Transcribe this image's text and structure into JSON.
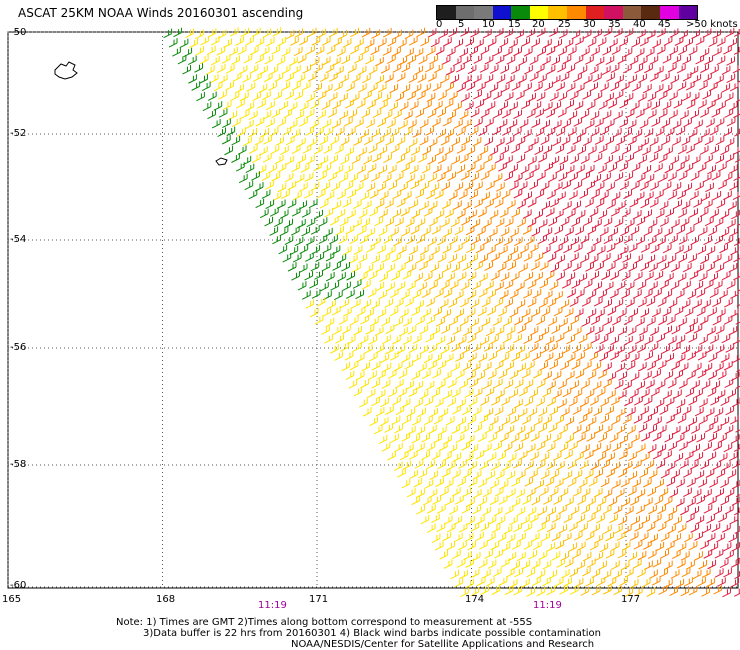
{
  "title": "ASCAT 25KM NOAA Winds 20160301 ascending",
  "legend": {
    "ticks": [
      "0",
      "5",
      "10",
      "15",
      "20",
      "25",
      "30",
      "35",
      "40",
      "45",
      ">50 knots"
    ],
    "colors": [
      "#1e1e1e",
      "#6e6e6e",
      "#7a7a7a",
      "#1010d0",
      "#0a8a0a",
      "#ffff00",
      "#ffc000",
      "#ff8a00",
      "#e02020",
      "#d01060",
      "#8a5a3a",
      "#5a2a10",
      "#e000e0",
      "#6000a0"
    ]
  },
  "axes": {
    "lat_labels": [
      "-50",
      "-52",
      "-54",
      "-56",
      "-58",
      "-60"
    ],
    "lon_labels": [
      "165",
      "168",
      "171",
      "174",
      "177"
    ],
    "lat_values": [
      -50,
      -52,
      -54,
      -56,
      -58,
      -60
    ],
    "lon_values": [
      165,
      168,
      171,
      174,
      177
    ]
  },
  "times": [
    "11:19",
    "11:19"
  ],
  "footer": {
    "line1": "Note: 1) Times are GMT 2)Times along bottom correspond to measurement at -55S",
    "line2": "3)Data buffer is 22 hrs from 20160301 4) Black wind barbs indicate possible contamination",
    "line3": "NOAA/NESDIS/Center for Satellite Applications and Research"
  }
}
